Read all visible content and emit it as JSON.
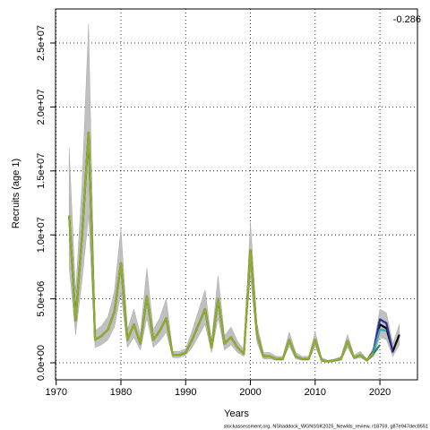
{
  "chart_data": {
    "type": "line",
    "xlabel": "Years",
    "ylabel": "Recruits (age 1)",
    "annotation": "-0.286",
    "footer": "stockassessment.org, NShaddock_WGNSSK2025_Newlds_review, r18759, g87e947dec8551",
    "grid": true,
    "x": [
      1972,
      1973,
      1974,
      1975,
      1976,
      1977,
      1978,
      1979,
      1980,
      1981,
      1982,
      1983,
      1984,
      1985,
      1986,
      1987,
      1988,
      1989,
      1990,
      1991,
      1992,
      1993,
      1994,
      1995,
      1996,
      1997,
      1998,
      1999,
      2000,
      2001,
      2002,
      2003,
      2004,
      2005,
      2006,
      2007,
      2008,
      2009,
      2010,
      2011,
      2012,
      2013,
      2014,
      2015,
      2016,
      2017,
      2018,
      2019,
      2020,
      2021,
      2022,
      2023
    ],
    "xlim": [
      1969.9,
      2025.8
    ],
    "xticks": [
      1970,
      1980,
      1990,
      2000,
      2010,
      2020
    ],
    "ylim": [
      -1330000.0,
      27660000.0
    ],
    "yticks": [
      {
        "value": 0,
        "label": "0.0e+00"
      },
      {
        "value": 5000000.0,
        "label": "5.0e+06"
      },
      {
        "value": 10000000.0,
        "label": "1.0e+07"
      },
      {
        "value": 15000000.0,
        "label": "1.5e+07"
      },
      {
        "value": 20000000.0,
        "label": "2.0e+07"
      },
      {
        "value": 25000000.0,
        "label": "2.5e+07"
      }
    ],
    "band": {
      "color": "#c0c0c0",
      "upper": [
        16800000.0,
        5500000.0,
        14000000.0,
        26500000.0,
        2500000.0,
        2900000.0,
        3600000.0,
        5600000.0,
        10500000.0,
        2600000.0,
        4200000.0,
        2200000.0,
        7400000.0,
        2600000.0,
        3500000.0,
        5000000.0,
        900000.0,
        900000.0,
        1100000.0,
        2500000.0,
        4100000.0,
        5700000.0,
        1700000.0,
        6800000.0,
        2100000.0,
        2800000.0,
        1700000.0,
        1000000.0,
        11000000.0,
        3100000.0,
        800000.0,
        800000.0,
        500000.0,
        500000.0,
        2400000.0,
        800000.0,
        500000.0,
        500000.0,
        2400000.0,
        400000.0,
        200000.0,
        300000.0,
        500000.0,
        2200000.0,
        600000.0,
        900000.0,
        300000.0,
        1200000.0,
        4200000.0,
        3900000.0,
        1500000.0,
        3000000.0
      ],
      "lower": [
        7500000.0,
        2200000.0,
        6500000.0,
        11500000.0,
        1200000.0,
        1400000.0,
        1800000.0,
        2800000.0,
        5500000.0,
        1200000.0,
        2000000.0,
        1000000.0,
        3500000.0,
        1200000.0,
        1700000.0,
        2400000.0,
        400000.0,
        400000.0,
        600000.0,
        1200000.0,
        2100000.0,
        3000000.0,
        800000.0,
        3500000.0,
        1000000.0,
        1400000.0,
        800000.0,
        500000.0,
        6800000.0,
        1600000.0,
        300000.0,
        300000.0,
        200000.0,
        200000.0,
        1300000.0,
        300000.0,
        200000.0,
        200000.0,
        1300000.0,
        100000.0,
        50000.0,
        100000.0,
        200000.0,
        1200000.0,
        300000.0,
        400000.0,
        100000.0,
        500000.0,
        2000000.0,
        1800000.0,
        500000.0,
        1400000.0
      ]
    },
    "series": [
      {
        "color": "#000000",
        "values": [
          11500000.0,
          3300000.0,
          10000000.0,
          18000000.0,
          1800000.0,
          2100000.0,
          2600000.0,
          4000000.0,
          7800000.0,
          1800000.0,
          3000000.0,
          1500000.0,
          5200000.0,
          1800000.0,
          2500000.0,
          3500000.0,
          600000.0,
          600000.0,
          800000.0,
          1800000.0,
          3000000.0,
          4200000.0,
          1200000.0,
          5000000.0,
          1500000.0,
          2000000.0,
          1200000.0,
          700000.0,
          8800000.0,
          2300000.0,
          500000.0,
          500000.0,
          300000.0,
          300000.0,
          1800000.0,
          500000.0,
          300000.0,
          300000.0,
          1800000.0,
          200000.0,
          100000.0,
          200000.0,
          300000.0,
          1700000.0,
          400000.0,
          600000.0,
          200000.0,
          800000.0,
          3000000.0,
          2700000.0,
          900000.0,
          2200000.0
        ]
      },
      {
        "color": "#2b2f8f",
        "values": [
          null,
          null,
          null,
          null,
          null,
          null,
          null,
          null,
          null,
          null,
          null,
          null,
          null,
          null,
          null,
          null,
          null,
          null,
          null,
          null,
          null,
          null,
          null,
          null,
          null,
          null,
          null,
          null,
          null,
          null,
          null,
          null,
          null,
          null,
          null,
          null,
          null,
          null,
          null,
          null,
          null,
          null,
          null,
          1700000.0,
          400000.0,
          600000.0,
          200000.0,
          900000.0,
          3400000.0,
          3100000.0,
          800000.0,
          null
        ]
      },
      {
        "color": "#3fa7b0",
        "values": [
          null,
          null,
          null,
          null,
          null,
          null,
          null,
          null,
          null,
          null,
          null,
          null,
          null,
          null,
          null,
          null,
          null,
          null,
          null,
          null,
          null,
          null,
          null,
          null,
          null,
          null,
          null,
          null,
          null,
          null,
          null,
          null,
          null,
          null,
          null,
          null,
          null,
          null,
          null,
          null,
          null,
          null,
          null,
          1700000.0,
          400000.0,
          600000.0,
          200000.0,
          800000.0,
          2600000.0,
          2500000.0,
          null,
          null
        ]
      },
      {
        "color": "#1f8a4c",
        "values": [
          null,
          null,
          null,
          null,
          null,
          null,
          null,
          null,
          null,
          null,
          null,
          null,
          null,
          null,
          null,
          null,
          null,
          null,
          null,
          null,
          null,
          null,
          null,
          null,
          null,
          null,
          null,
          null,
          null,
          null,
          null,
          null,
          null,
          null,
          null,
          null,
          null,
          null,
          null,
          null,
          null,
          null,
          null,
          1700000.0,
          400000.0,
          600000.0,
          200000.0,
          700000.0,
          1400000.0,
          null,
          null,
          null
        ]
      },
      {
        "color": "#8fae2a",
        "values": [
          11500000.0,
          3300000.0,
          10000000.0,
          18000000.0,
          1800000.0,
          2100000.0,
          2600000.0,
          4000000.0,
          7800000.0,
          1800000.0,
          3000000.0,
          1500000.0,
          5200000.0,
          1800000.0,
          2500000.0,
          3500000.0,
          600000.0,
          600000.0,
          800000.0,
          1800000.0,
          3000000.0,
          4200000.0,
          1200000.0,
          5000000.0,
          1500000.0,
          2000000.0,
          1200000.0,
          700000.0,
          8800000.0,
          2300000.0,
          500000.0,
          500000.0,
          300000.0,
          300000.0,
          1800000.0,
          500000.0,
          300000.0,
          300000.0,
          1800000.0,
          200000.0,
          100000.0,
          200000.0,
          300000.0,
          1700000.0,
          400000.0,
          600000.0,
          200000.0,
          800000.0,
          null,
          null,
          null,
          null
        ]
      }
    ]
  }
}
